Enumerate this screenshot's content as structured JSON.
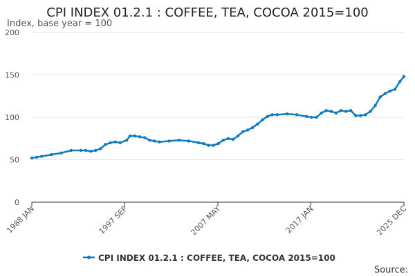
{
  "chart_data": {
    "type": "line",
    "title": "CPI INDEX 01.2.1 : COFFEE, TEA, COCOA 2015=100",
    "ylabel": "Index, base year = 100",
    "xlabel": "",
    "ylim": [
      0,
      200
    ],
    "yticks": [
      0,
      50,
      100,
      150,
      200
    ],
    "x_tick_labels": [
      "1988 JAN",
      "1997 SEP",
      "2007 MAY",
      "2017 JAN",
      "2025 DEC"
    ],
    "grid": true,
    "legend_position": "bottom",
    "series": [
      {
        "name": "CPI INDEX 01.2.1 : COFFEE, TEA, COCOA 2015=100",
        "color": "#0f7abf",
        "x": [
          "1988-01",
          "1988-07",
          "1989-01",
          "1990-01",
          "1991-01",
          "1992-01",
          "1993-01",
          "1993-07",
          "1994-01",
          "1994-07",
          "1995-01",
          "1995-07",
          "1996-01",
          "1996-07",
          "1997-01",
          "1997-09",
          "1998-01",
          "1998-07",
          "1999-01",
          "1999-07",
          "2000-01",
          "2000-07",
          "2001-01",
          "2002-01",
          "2003-01",
          "2004-01",
          "2005-01",
          "2005-07",
          "2006-01",
          "2006-07",
          "2007-01",
          "2007-07",
          "2008-01",
          "2008-07",
          "2009-01",
          "2009-07",
          "2010-01",
          "2010-07",
          "2011-01",
          "2011-07",
          "2012-01",
          "2012-07",
          "2013-01",
          "2014-01",
          "2015-01",
          "2016-01",
          "2016-07",
          "2017-01",
          "2017-07",
          "2018-01",
          "2018-07",
          "2019-01",
          "2019-07",
          "2020-01",
          "2020-07",
          "2021-01",
          "2021-07",
          "2022-01",
          "2022-07",
          "2023-01",
          "2023-07",
          "2024-01",
          "2024-07",
          "2025-01",
          "2025-07",
          "2025-12"
        ],
        "values": [
          52,
          53,
          54,
          56,
          58,
          61,
          61,
          61,
          60,
          61,
          63,
          68,
          70,
          71,
          70,
          73,
          78,
          78,
          77,
          76,
          73,
          72,
          71,
          72,
          73,
          72,
          70,
          69,
          67,
          67,
          69,
          73,
          75,
          74,
          78,
          83,
          85,
          88,
          92,
          97,
          101,
          103,
          103,
          104,
          103,
          101,
          100,
          100,
          105,
          108,
          107,
          105,
          108,
          107,
          108,
          102,
          102,
          103,
          107,
          114,
          124,
          128,
          131,
          133,
          142,
          148
        ]
      }
    ]
  },
  "source_label": "Source:"
}
